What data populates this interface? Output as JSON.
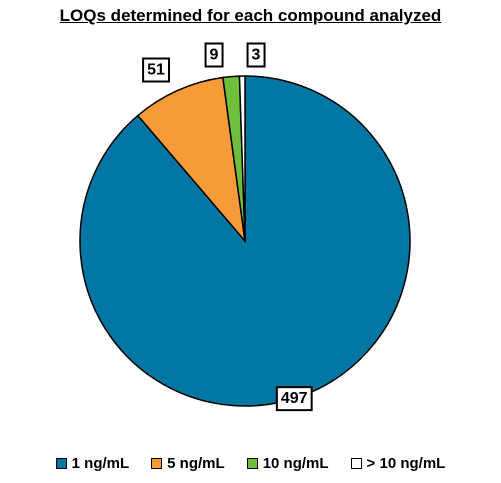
{
  "chart_data": {
    "type": "pie",
    "title": "LOQs determined for each compound analyzed",
    "categories": [
      "1 ng/mL",
      "5 ng/mL",
      "10 ng/mL",
      "> 10 ng/mL"
    ],
    "values": [
      497,
      51,
      9,
      3
    ],
    "data_labels": [
      "497",
      "51",
      "9",
      "3"
    ],
    "colors": [
      "#0077a3",
      "#f79a38",
      "#6fbe3c",
      "#ffffff"
    ],
    "legend_position": "bottom"
  }
}
